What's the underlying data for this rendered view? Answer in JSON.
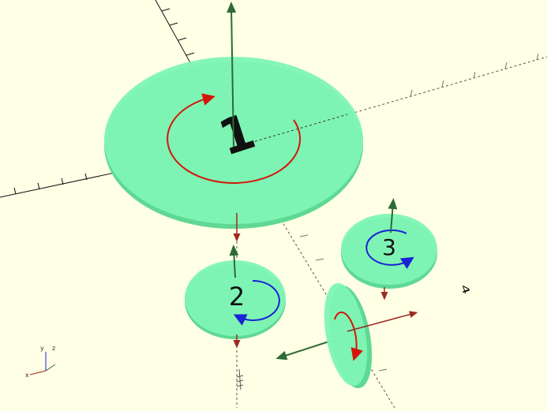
{
  "viewport": {
    "background": "#ffffe5",
    "disc_fill": "#7ef5b4",
    "disc_edge": "#5fd894",
    "rotation_color_cw": "#d4160a",
    "rotation_color_ccw": "#1a23d6",
    "vector_up_color": "#2d6b35",
    "vector_down_color": "#9b2a1f"
  },
  "discs": [
    {
      "id": "1",
      "label": "1",
      "rotation": "red-arrow"
    },
    {
      "id": "2",
      "label": "2",
      "rotation": "blue-arrow"
    },
    {
      "id": "3",
      "label": "3",
      "rotation": "blue-arrow"
    },
    {
      "id": "4",
      "label": "4",
      "rotation": "red-arrow"
    }
  ],
  "axes_indicator": {
    "x_label": "x",
    "y_label": "y",
    "z_label": "z"
  }
}
